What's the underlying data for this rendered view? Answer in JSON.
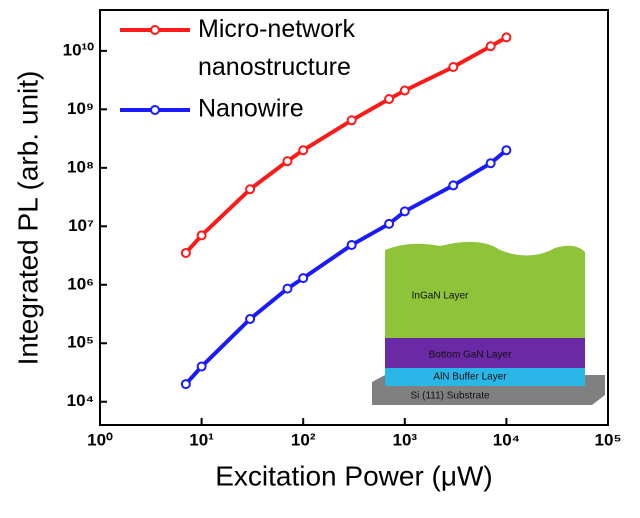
{
  "chart_data": {
    "type": "line",
    "xlabel": "Excitation Power (μW)",
    "ylabel": "Integrated PL (arb. unit)",
    "x": [
      7,
      10,
      30,
      70,
      100,
      300,
      700,
      1000,
      3000,
      7000,
      10000
    ],
    "series": [
      {
        "name": "Micro-network nanostructure",
        "color": "#ff1a1a",
        "values": [
          3500000,
          7000000,
          43000000,
          130000000,
          200000000,
          650000000,
          1500000000,
          2100000000,
          5300000000,
          12000000000,
          17000000000
        ]
      },
      {
        "name": "Nanowire",
        "color": "#1a1aff",
        "values": [
          20000,
          40000,
          260000,
          860000,
          1300000,
          4800000,
          11000000,
          18000000,
          50000000,
          120000000,
          200000000
        ]
      }
    ],
    "xscale": "log",
    "yscale": "log",
    "xlim": [
      1,
      100000
    ],
    "ylim": [
      4000,
      50000000000
    ],
    "xticks": [
      {
        "value": 1,
        "label": "10⁰"
      },
      {
        "value": 10,
        "label": "10¹"
      },
      {
        "value": 100,
        "label": "10²"
      },
      {
        "value": 1000,
        "label": "10³"
      },
      {
        "value": 10000,
        "label": "10⁴"
      },
      {
        "value": 100000,
        "label": "10⁵"
      }
    ],
    "yticks": [
      {
        "value": 10000,
        "label": "10⁴"
      },
      {
        "value": 100000,
        "label": "10⁵"
      },
      {
        "value": 1000000,
        "label": "10⁶"
      },
      {
        "value": 10000000,
        "label": "10⁷"
      },
      {
        "value": 100000000,
        "label": "10⁸"
      },
      {
        "value": 1000000000,
        "label": "10⁹"
      },
      {
        "value": 10000000000,
        "label": "10¹⁰"
      }
    ],
    "legend": "upper left",
    "inset_labels": [
      "InGaN Layer",
      "Bottom GaN Layer",
      "AlN Buffer Layer",
      "Si (111) Substrate"
    ]
  }
}
